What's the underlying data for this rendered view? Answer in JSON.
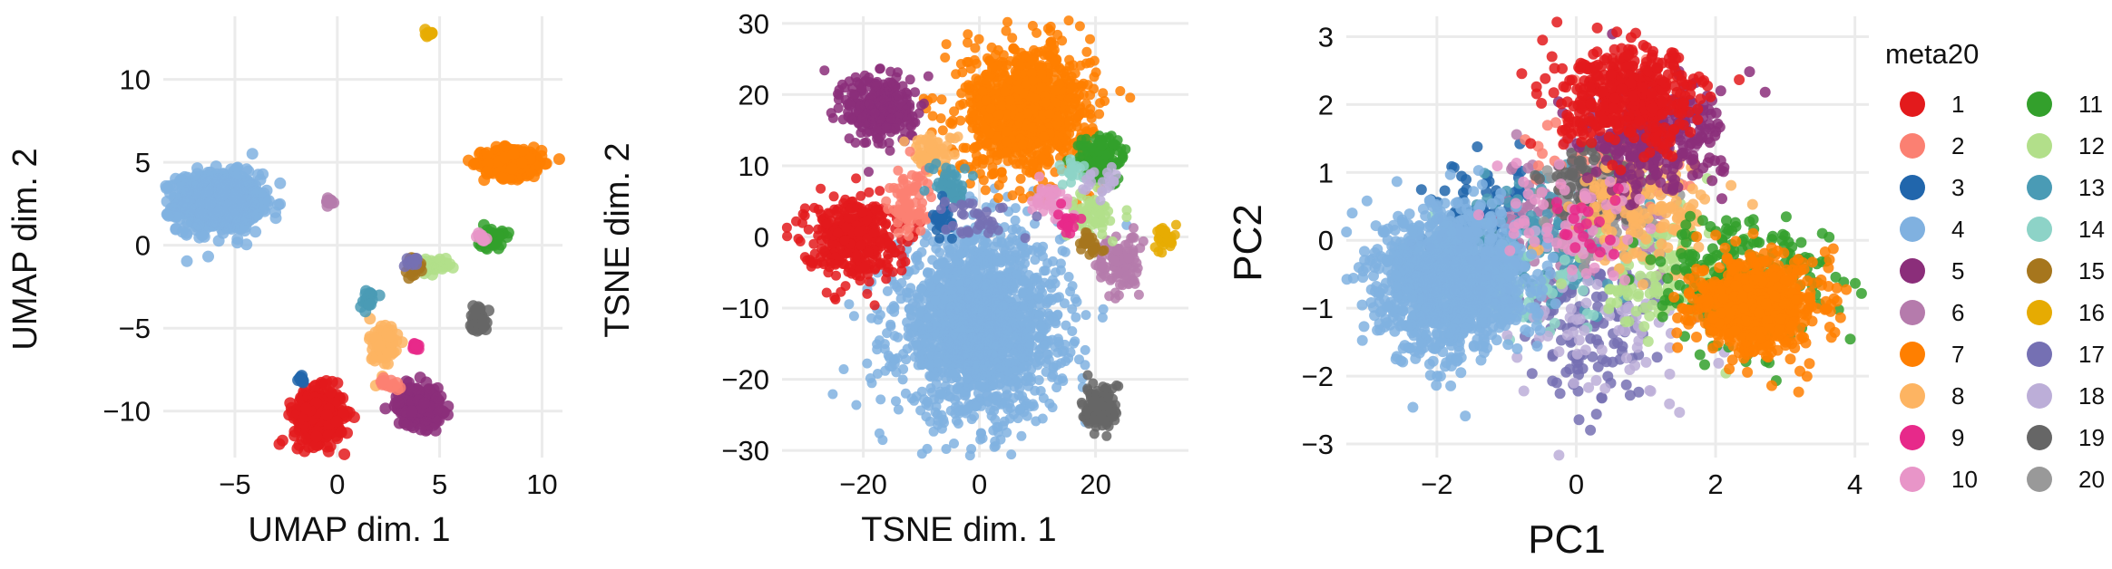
{
  "chart_data": [
    {
      "type": "scatter",
      "xlabel": "UMAP dim. 1",
      "ylabel": "UMAP dim. 2",
      "xlim": [
        -8.5,
        11
      ],
      "ylim": [
        -12.8,
        13.8
      ],
      "xticks": [
        -5,
        0,
        5,
        10
      ],
      "yticks": [
        -10,
        -5,
        0,
        5,
        10
      ],
      "xtick_labels": [
        "−5",
        "0",
        "5",
        "10"
      ],
      "ytick_labels": [
        "−10",
        "−5",
        "0",
        "5",
        "10"
      ],
      "grid": true,
      "clusters": [
        {
          "group": "4",
          "cx": -5.8,
          "cy": 2.6,
          "sx": 1.0,
          "sy": 0.85,
          "n": 900
        },
        {
          "group": "7",
          "cx": 8.6,
          "cy": 5.0,
          "sx": 0.7,
          "sy": 0.45,
          "n": 350
        },
        {
          "group": "16",
          "cx": 4.5,
          "cy": 12.8,
          "sx": 0.1,
          "sy": 0.12,
          "n": 10
        },
        {
          "group": "1",
          "cx": -0.9,
          "cy": -10.3,
          "sx": 0.6,
          "sy": 0.8,
          "n": 350
        },
        {
          "group": "5",
          "cx": 4.0,
          "cy": -9.7,
          "sx": 0.55,
          "sy": 0.6,
          "n": 220
        },
        {
          "group": "8",
          "cx": 2.3,
          "cy": -6.1,
          "sx": 0.35,
          "sy": 0.9,
          "n": 70
        },
        {
          "group": "11",
          "cx": 7.5,
          "cy": 0.4,
          "sx": 0.3,
          "sy": 0.3,
          "n": 60
        },
        {
          "group": "12",
          "cx": 4.6,
          "cy": -1.2,
          "sx": 0.45,
          "sy": 0.2,
          "n": 50
        },
        {
          "group": "19",
          "cx": 6.9,
          "cy": -4.4,
          "sx": 0.2,
          "sy": 0.4,
          "n": 50
        },
        {
          "group": "9",
          "cx": 3.8,
          "cy": -6.2,
          "sx": 0.15,
          "sy": 0.15,
          "n": 15
        },
        {
          "group": "13",
          "cx": 1.5,
          "cy": -3.2,
          "sx": 0.2,
          "sy": 0.3,
          "n": 20
        },
        {
          "group": "3",
          "cx": -1.8,
          "cy": -8.1,
          "sx": 0.1,
          "sy": 0.15,
          "n": 10
        },
        {
          "group": "6",
          "cx": -0.4,
          "cy": 2.6,
          "sx": 0.15,
          "sy": 0.1,
          "n": 15
        },
        {
          "group": "15",
          "cx": 3.8,
          "cy": -1.3,
          "sx": 0.2,
          "sy": 0.3,
          "n": 20
        },
        {
          "group": "17",
          "cx": 3.7,
          "cy": -1.0,
          "sx": 0.15,
          "sy": 0.15,
          "n": 10
        },
        {
          "group": "10",
          "cx": 7.0,
          "cy": 0.5,
          "sx": 0.15,
          "sy": 0.1,
          "n": 10
        },
        {
          "group": "2",
          "cx": 2.6,
          "cy": -8.3,
          "sx": 0.3,
          "sy": 0.15,
          "n": 15
        }
      ]
    },
    {
      "type": "scatter",
      "xlabel": "TSNE dim. 1",
      "ylabel": "TSNE dim. 2",
      "xlim": [
        -34,
        36
      ],
      "ylim": [
        -31,
        31
      ],
      "xticks": [
        -20,
        0,
        20
      ],
      "yticks": [
        -30,
        -20,
        -10,
        0,
        10,
        20,
        30
      ],
      "xtick_labels": [
        "−20",
        "0",
        "20"
      ],
      "ytick_labels": [
        "−30",
        "−20",
        "−10",
        "0",
        "10",
        "20",
        "30"
      ],
      "grid": true,
      "clusters": [
        {
          "group": "4",
          "cx": 0,
          "cy": -12.5,
          "sx": 7.0,
          "sy": 6.5,
          "n": 1700
        },
        {
          "group": "7",
          "cx": 8,
          "cy": 18,
          "sx": 5.5,
          "sy": 4.5,
          "n": 1000
        },
        {
          "group": "5",
          "cx": -17,
          "cy": 18,
          "sx": 3.0,
          "sy": 2.5,
          "n": 300
        },
        {
          "group": "1",
          "cx": -22,
          "cy": 0,
          "sx": 4.0,
          "sy": 2.8,
          "n": 380
        },
        {
          "group": "8",
          "cx": -8,
          "cy": 12,
          "sx": 2.0,
          "sy": 1.2,
          "n": 70
        },
        {
          "group": "11",
          "cx": 21,
          "cy": 11,
          "sx": 2.0,
          "sy": 1.6,
          "n": 140
        },
        {
          "group": "6",
          "cx": 24,
          "cy": -4,
          "sx": 1.8,
          "sy": 2.2,
          "n": 100
        },
        {
          "group": "19",
          "cx": 21,
          "cy": -24,
          "sx": 1.6,
          "sy": 1.8,
          "n": 120
        },
        {
          "group": "16",
          "cx": 32,
          "cy": 0,
          "sx": 0.8,
          "sy": 0.8,
          "n": 35
        },
        {
          "group": "2",
          "cx": -12,
          "cy": 5,
          "sx": 2.0,
          "sy": 2.5,
          "n": 80
        },
        {
          "group": "13",
          "cx": -5,
          "cy": 7,
          "sx": 1.5,
          "sy": 1.5,
          "n": 50
        },
        {
          "group": "3",
          "cx": -6,
          "cy": 2,
          "sx": 1.0,
          "sy": 1.0,
          "n": 30
        },
        {
          "group": "12",
          "cx": 19,
          "cy": 3,
          "sx": 2.0,
          "sy": 1.5,
          "n": 60
        },
        {
          "group": "15",
          "cx": 19,
          "cy": -1,
          "sx": 1.0,
          "sy": 1.0,
          "n": 25
        },
        {
          "group": "10",
          "cx": 12,
          "cy": 5,
          "sx": 2.0,
          "sy": 1.2,
          "n": 40
        },
        {
          "group": "9",
          "cx": 15,
          "cy": 2,
          "sx": 0.8,
          "sy": 0.8,
          "n": 20
        },
        {
          "group": "17",
          "cx": 0,
          "cy": 3,
          "sx": 3.0,
          "sy": 1.5,
          "n": 35
        },
        {
          "group": "14",
          "cx": 16,
          "cy": 9,
          "sx": 1.0,
          "sy": 1.0,
          "n": 20
        },
        {
          "group": "18",
          "cx": 21,
          "cy": 8,
          "sx": 1.5,
          "sy": 1.0,
          "n": 20
        }
      ]
    },
    {
      "type": "scatter",
      "xlabel": "PC1",
      "ylabel": "PC2",
      "xlim": [
        -3.3,
        4.2
      ],
      "ylim": [
        -3.2,
        3.3
      ],
      "xticks": [
        -2,
        0,
        2,
        4
      ],
      "yticks": [
        -3,
        -2,
        -1,
        0,
        1,
        2,
        3
      ],
      "xtick_labels": [
        "−2",
        "0",
        "2",
        "4"
      ],
      "ytick_labels": [
        "−3",
        "−2",
        "−1",
        "0",
        "1",
        "2",
        "3"
      ],
      "grid": true,
      "clusters": [
        {
          "group": "3",
          "cx": -1.3,
          "cy": 0.3,
          "sx": 0.4,
          "sy": 0.4,
          "n": 120
        },
        {
          "group": "17",
          "cx": 0.2,
          "cy": -1.4,
          "sx": 0.5,
          "sy": 0.6,
          "n": 130
        },
        {
          "group": "6",
          "cx": 0.0,
          "cy": 0.4,
          "sx": 0.6,
          "sy": 0.5,
          "n": 160
        },
        {
          "group": "13",
          "cx": -0.5,
          "cy": 0.0,
          "sx": 0.5,
          "sy": 0.5,
          "n": 120
        },
        {
          "group": "14",
          "cx": -0.7,
          "cy": -0.6,
          "sx": 0.5,
          "sy": 0.5,
          "n": 60
        },
        {
          "group": "18",
          "cx": 0.5,
          "cy": -1.2,
          "sx": 0.8,
          "sy": 0.6,
          "n": 80
        },
        {
          "group": "12",
          "cx": 1.2,
          "cy": -0.4,
          "sx": 0.5,
          "sy": 0.5,
          "n": 120
        },
        {
          "group": "2",
          "cx": 0.6,
          "cy": 1.3,
          "sx": 0.5,
          "sy": 0.5,
          "n": 120
        },
        {
          "group": "20",
          "cx": 0.4,
          "cy": 0.5,
          "sx": 0.5,
          "sy": 0.4,
          "n": 100
        },
        {
          "group": "19",
          "cx": 0.3,
          "cy": 0.8,
          "sx": 0.4,
          "sy": 0.3,
          "n": 100
        },
        {
          "group": "8",
          "cx": 1.0,
          "cy": 0.5,
          "sx": 0.5,
          "sy": 0.4,
          "n": 160
        },
        {
          "group": "11",
          "cx": 2.4,
          "cy": -0.6,
          "sx": 0.6,
          "sy": 0.5,
          "n": 250
        },
        {
          "group": "5",
          "cx": 1.1,
          "cy": 1.5,
          "sx": 0.5,
          "sy": 0.4,
          "n": 300
        },
        {
          "group": "1",
          "cx": 0.8,
          "cy": 2.1,
          "sx": 0.5,
          "sy": 0.35,
          "n": 450
        },
        {
          "group": "4",
          "cx": -1.8,
          "cy": -0.6,
          "sx": 0.5,
          "sy": 0.5,
          "n": 1300
        },
        {
          "group": "7",
          "cx": 2.6,
          "cy": -0.95,
          "sx": 0.45,
          "sy": 0.35,
          "n": 650
        },
        {
          "group": "10",
          "cx": -0.2,
          "cy": 0.3,
          "sx": 0.5,
          "sy": 0.4,
          "n": 60
        },
        {
          "group": "9",
          "cx": 0.2,
          "cy": 0.1,
          "sx": 0.3,
          "sy": 0.3,
          "n": 20
        }
      ]
    }
  ],
  "legend": {
    "title": "meta20",
    "items": [
      {
        "label": "1",
        "color": "#e31a1c"
      },
      {
        "label": "2",
        "color": "#fb8072"
      },
      {
        "label": "3",
        "color": "#2166ac"
      },
      {
        "label": "4",
        "color": "#80b1e0"
      },
      {
        "label": "5",
        "color": "#8b2e7a"
      },
      {
        "label": "6",
        "color": "#b57bac"
      },
      {
        "label": "7",
        "color": "#ff7f00"
      },
      {
        "label": "8",
        "color": "#fdb462"
      },
      {
        "label": "9",
        "color": "#e7298a"
      },
      {
        "label": "10",
        "color": "#e895c8"
      },
      {
        "label": "11",
        "color": "#33a02c"
      },
      {
        "label": "12",
        "color": "#b2df8a"
      },
      {
        "label": "13",
        "color": "#4a9bb5"
      },
      {
        "label": "14",
        "color": "#8dd3c7"
      },
      {
        "label": "15",
        "color": "#a6761d"
      },
      {
        "label": "16",
        "color": "#e6ab02"
      },
      {
        "label": "17",
        "color": "#7570b3"
      },
      {
        "label": "18",
        "color": "#bcaed8"
      },
      {
        "label": "19",
        "color": "#666666"
      },
      {
        "label": "20",
        "color": "#999999"
      }
    ]
  }
}
